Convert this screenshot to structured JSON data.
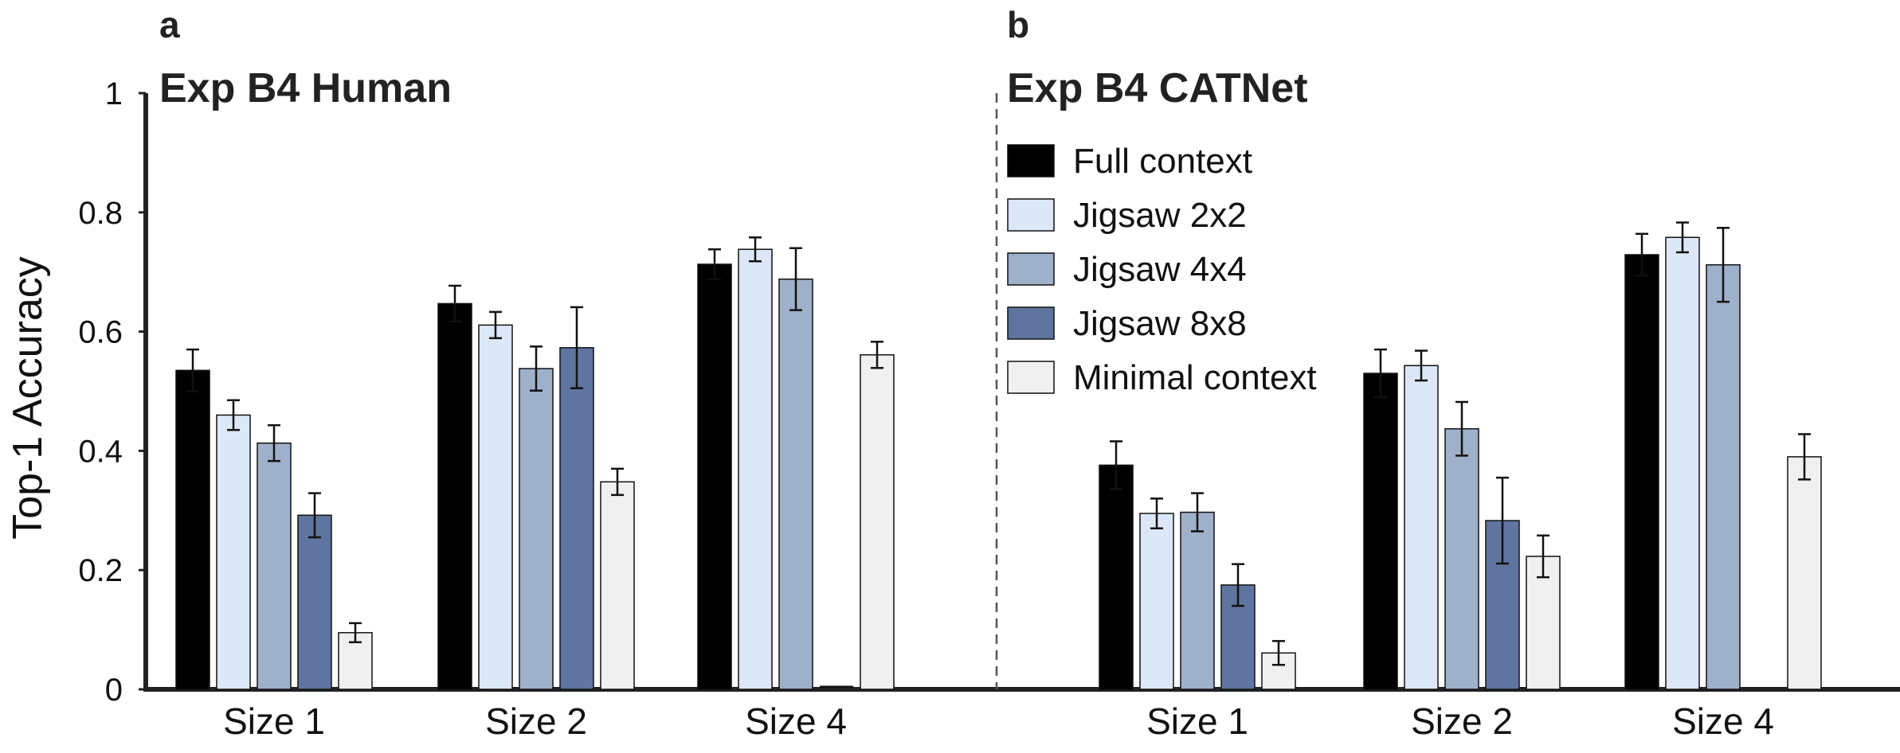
{
  "chart_data": {
    "type": "bar",
    "ylabel": "Top-1 Accuracy",
    "ylim": [
      0,
      1
    ],
    "yticks": [
      "0",
      "0.2",
      "0.4",
      "0.6",
      "0.8",
      "1"
    ],
    "legend": {
      "placement": "top-center",
      "entries": [
        {
          "label": "Full context",
          "color": "#000000"
        },
        {
          "label": "Jigsaw 2x2",
          "color": "#dce8f7"
        },
        {
          "label": "Jigsaw 4x4",
          "color": "#9fb0cb"
        },
        {
          "label": "Jigsaw 8x8",
          "color": "#5f759f"
        },
        {
          "label": "Minimal context",
          "color": "#f0f0f0"
        }
      ]
    },
    "panels": [
      {
        "letter": "a",
        "title": "Exp B4 Human",
        "categories": [
          "Size 1",
          "Size 2",
          "Size 4"
        ],
        "series": [
          {
            "name": "Full context",
            "values": [
              0.535,
              0.647,
              0.713
            ],
            "errors": [
              0.035,
              0.03,
              0.025
            ]
          },
          {
            "name": "Jigsaw 2x2",
            "values": [
              0.46,
              0.611,
              0.738
            ],
            "errors": [
              0.025,
              0.022,
              0.02
            ]
          },
          {
            "name": "Jigsaw 4x4",
            "values": [
              0.413,
              0.538,
              0.688
            ],
            "errors": [
              0.03,
              0.037,
              0.052
            ]
          },
          {
            "name": "Jigsaw 8x8",
            "values": [
              0.292,
              0.573,
              0.002
            ],
            "errors": [
              0.037,
              0.068,
              0.0
            ]
          },
          {
            "name": "Minimal context",
            "values": [
              0.095,
              0.348,
              0.561
            ],
            "errors": [
              0.016,
              0.022,
              0.022
            ]
          }
        ]
      },
      {
        "letter": "b",
        "title": "Exp B4 CATNet",
        "categories": [
          "Size 1",
          "Size 2",
          "Size 4"
        ],
        "series": [
          {
            "name": "Full context",
            "values": [
              0.376,
              0.53,
              0.729
            ],
            "errors": [
              0.04,
              0.04,
              0.035
            ]
          },
          {
            "name": "Jigsaw 2x2",
            "values": [
              0.295,
              0.543,
              0.758
            ],
            "errors": [
              0.025,
              0.025,
              0.025
            ]
          },
          {
            "name": "Jigsaw 4x4",
            "values": [
              0.297,
              0.437,
              0.712
            ],
            "errors": [
              0.032,
              0.045,
              0.062
            ]
          },
          {
            "name": "Jigsaw 8x8",
            "values": [
              0.175,
              0.283,
              0.0
            ],
            "errors": [
              0.035,
              0.072,
              0.0
            ]
          },
          {
            "name": "Minimal context",
            "values": [
              0.061,
              0.223,
              0.39
            ],
            "errors": [
              0.02,
              0.035,
              0.038
            ]
          }
        ]
      }
    ]
  }
}
